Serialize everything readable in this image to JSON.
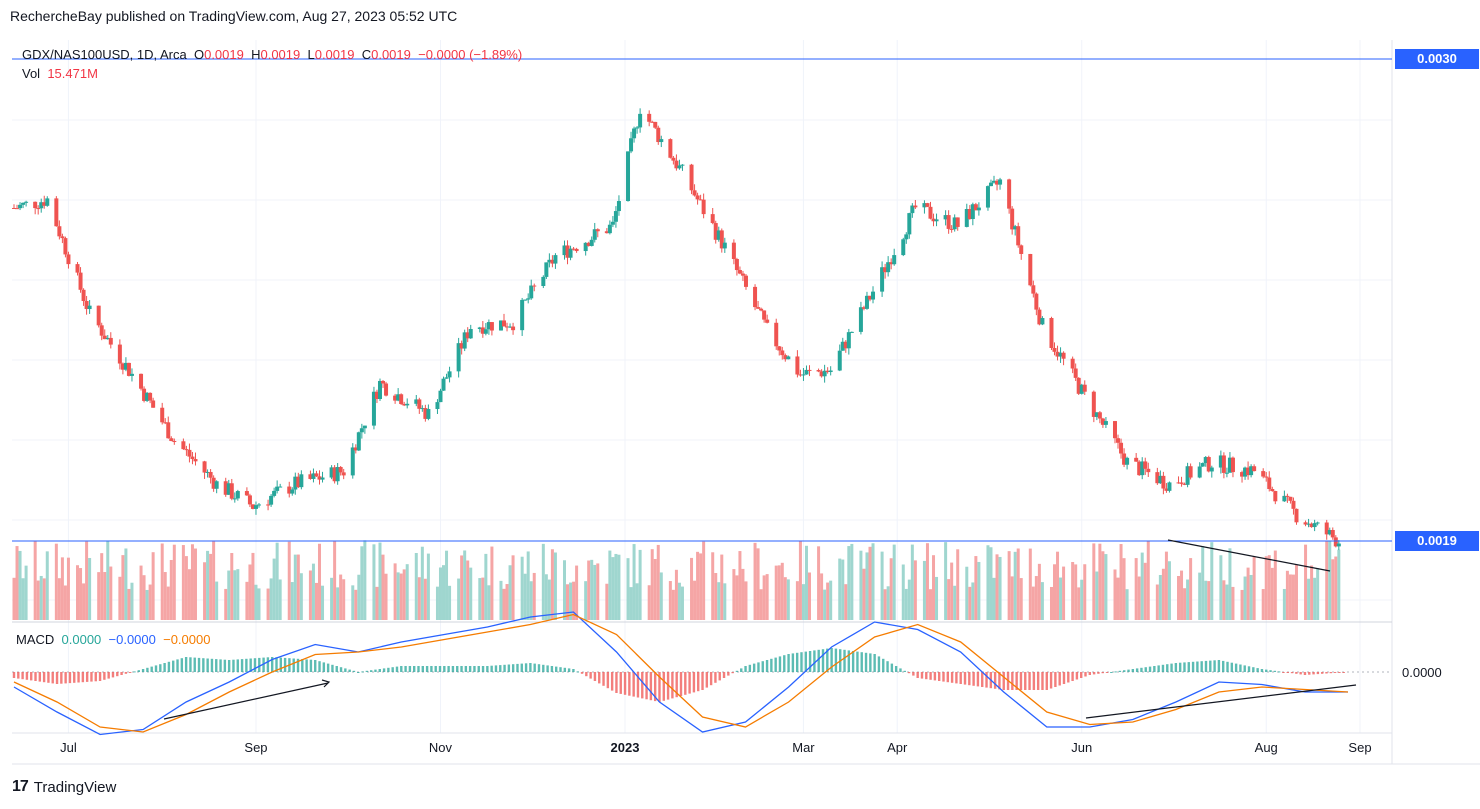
{
  "header": {
    "publisher": "RechercheBay",
    "text": "RechercheBay published on TradingView.com, Aug 27, 2023 05:52 UTC"
  },
  "legend": {
    "symbol": "GDX/NAS100USD, 1D, Arca",
    "o_label": "O",
    "o": "0.0019",
    "h_label": "H",
    "h": "0.0019",
    "l_label": "L",
    "l": "0.0019",
    "c_label": "C",
    "c": "0.0019",
    "change": "−0.0000 (−1.89%)",
    "vol_label": "Vol",
    "vol": "15.471M"
  },
  "macd_legend": {
    "label": "MACD",
    "hist": "0.0000",
    "macd": "−0.0000",
    "signal": "−0.0000"
  },
  "price_badges": {
    "top": "0.0030",
    "current": "0.0019"
  },
  "macd_axis_label": "0.0000",
  "footer": {
    "brand": "TradingView"
  },
  "colors": {
    "up": "#26a69a",
    "down": "#ef5350",
    "vol_up": "#9fd6cf",
    "vol_down": "#f5a5a5",
    "macd": "#2962ff",
    "signal": "#f57c00",
    "accent": "#2962ff"
  },
  "chart_data": {
    "type": "candlestick",
    "title": "GDX/NAS100USD, 1D, Arca",
    "x_ticks": [
      "Jul",
      "Sep",
      "Nov",
      "2023",
      "Mar",
      "Apr",
      "Jun",
      "Aug",
      "Sep"
    ],
    "price_levels": [
      0.003,
      0.0019
    ],
    "price_path": [
      {
        "date": "2022-06-13",
        "price": 0.00266
      },
      {
        "date": "2022-06-24",
        "price": 0.00268
      },
      {
        "date": "2022-07-08",
        "price": 0.00242
      },
      {
        "date": "2022-07-22",
        "price": 0.00228
      },
      {
        "date": "2022-08-05",
        "price": 0.00213
      },
      {
        "date": "2022-08-19",
        "price": 0.00203
      },
      {
        "date": "2022-08-31",
        "price": 0.00198
      },
      {
        "date": "2022-09-14",
        "price": 0.00203
      },
      {
        "date": "2022-09-30",
        "price": 0.00206
      },
      {
        "date": "2022-10-12",
        "price": 0.00226
      },
      {
        "date": "2022-10-28",
        "price": 0.00219
      },
      {
        "date": "2022-11-11",
        "price": 0.00239
      },
      {
        "date": "2022-11-25",
        "price": 0.0024
      },
      {
        "date": "2022-12-09",
        "price": 0.00255
      },
      {
        "date": "2022-12-28",
        "price": 0.00262
      },
      {
        "date": "2023-01-06",
        "price": 0.00289
      },
      {
        "date": "2023-01-20",
        "price": 0.00274
      },
      {
        "date": "2023-02-03",
        "price": 0.00257
      },
      {
        "date": "2023-02-17",
        "price": 0.00238
      },
      {
        "date": "2023-02-28",
        "price": 0.00228
      },
      {
        "date": "2023-03-10",
        "price": 0.00229
      },
      {
        "date": "2023-03-24",
        "price": 0.00247
      },
      {
        "date": "2023-04-07",
        "price": 0.00266
      },
      {
        "date": "2023-04-21",
        "price": 0.00262
      },
      {
        "date": "2023-05-05",
        "price": 0.00272
      },
      {
        "date": "2023-05-19",
        "price": 0.00239
      },
      {
        "date": "2023-06-02",
        "price": 0.00223
      },
      {
        "date": "2023-06-16",
        "price": 0.00208
      },
      {
        "date": "2023-06-30",
        "price": 0.00203
      },
      {
        "date": "2023-07-14",
        "price": 0.00208
      },
      {
        "date": "2023-07-28",
        "price": 0.00206
      },
      {
        "date": "2023-08-11",
        "price": 0.00196
      },
      {
        "date": "2023-08-25",
        "price": 0.0019
      }
    ],
    "macd_series": [
      {
        "name": "MACD",
        "values": [
          -3e-05,
          -8e-05,
          -0.000125,
          -0.000115,
          -6e-05,
          -2e-05,
          2.5e-05,
          5.5e-05,
          4e-05,
          6e-05,
          7.5e-05,
          9e-05,
          0.00011,
          0.00012,
          4e-05,
          -6e-05,
          -0.00012,
          -0.0001,
          -3e-05,
          5e-05,
          0.0001,
          8.5e-05,
          4e-05,
          -4e-05,
          -0.00011,
          -0.00011,
          -9.5e-05,
          -6e-05,
          -2e-05,
          -2.5e-05,
          -4e-05,
          -4e-05
        ]
      },
      {
        "name": "Signal",
        "values": [
          -2e-05,
          -6e-05,
          -0.00011,
          -0.00012,
          -8.5e-05,
          -4e-05,
          0.0,
          3.5e-05,
          4e-05,
          5e-05,
          6.5e-05,
          8e-05,
          9.5e-05,
          0.000115,
          7.5e-05,
          -1e-05,
          -9e-05,
          -0.00011,
          -6e-05,
          1e-05,
          7e-05,
          9.5e-05,
          6e-05,
          -1e-05,
          -8e-05,
          -0.000105,
          -0.0001,
          -7.5e-05,
          -4e-05,
          -3e-05,
          -3.5e-05,
          -4e-05
        ]
      }
    ],
    "legend_position": "top-left"
  }
}
